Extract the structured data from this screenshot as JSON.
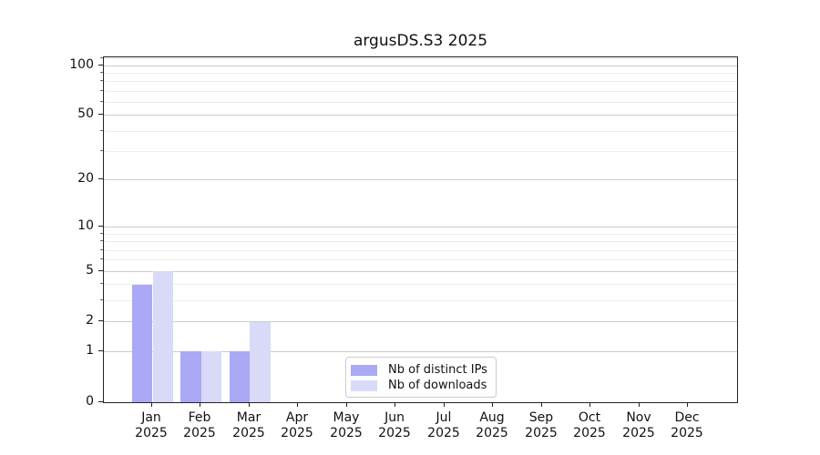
{
  "chart_data": {
    "type": "bar",
    "title": "argusDS.S3 2025",
    "categories": [
      "Jan",
      "Feb",
      "Mar",
      "Apr",
      "May",
      "Jun",
      "Jul",
      "Aug",
      "Sep",
      "Oct",
      "Nov",
      "Dec"
    ],
    "x_sublabel": "2025",
    "series": [
      {
        "name": "Nb of distinct IPs",
        "color": "#a9a9f5",
        "values": [
          4,
          1,
          1,
          0,
          0,
          0,
          0,
          0,
          0,
          0,
          0,
          0
        ]
      },
      {
        "name": "Nb of downloads",
        "color": "#d9d9f8",
        "values": [
          5,
          1,
          2,
          0,
          0,
          0,
          0,
          0,
          0,
          0,
          0,
          0
        ]
      }
    ],
    "yscale": "log1p",
    "ylim": [
      0,
      112
    ],
    "yticks": [
      0,
      1,
      2,
      5,
      10,
      20,
      50,
      100
    ],
    "yticks_minor": [
      3,
      4,
      6,
      7,
      8,
      9,
      30,
      40,
      60,
      70,
      80,
      90,
      110
    ],
    "xlabel": "",
    "ylabel": "",
    "grid": "horizontal",
    "legend_position": "lower center",
    "colors": {
      "grid_major": "#cbcbcb",
      "grid_minor": "#ececec",
      "spine": "#222222",
      "background": "#ffffff"
    }
  }
}
